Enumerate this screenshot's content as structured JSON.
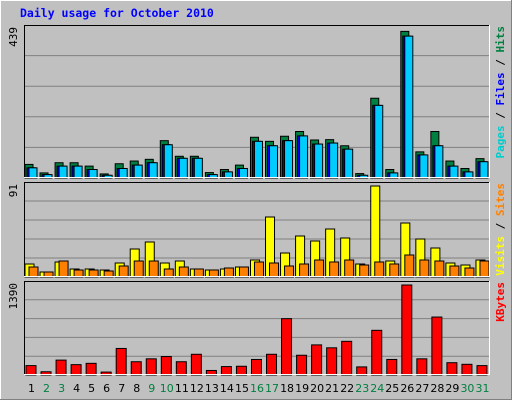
{
  "chart_data": {
    "type": "bar",
    "title": "Daily usage for October 2010",
    "categories": [
      "1",
      "2",
      "3",
      "4",
      "5",
      "6",
      "7",
      "8",
      "9",
      "10",
      "11",
      "12",
      "13",
      "14",
      "15",
      "16",
      "17",
      "18",
      "19",
      "20",
      "21",
      "22",
      "23",
      "24",
      "25",
      "26",
      "27",
      "28",
      "29",
      "30",
      "31"
    ],
    "weekend_days": [
      "2",
      "3",
      "9",
      "10",
      "16",
      "17",
      "23",
      "24",
      "30",
      "31"
    ],
    "grid": true,
    "panels": [
      {
        "id": "pages-files-hits",
        "ymax_label": "439",
        "ylim": [
          0,
          439
        ],
        "axis_label_parts": [
          {
            "text": "Pages",
            "color": "#00cccc"
          },
          {
            "text": " / ",
            "color": "#000000"
          },
          {
            "text": "Files",
            "color": "#0000ff"
          },
          {
            "text": " / ",
            "color": "#000000"
          },
          {
            "text": "Hits",
            "color": "#008040"
          }
        ],
        "series": [
          {
            "name": "Hits",
            "color": "#008040",
            "values": [
              40,
              15,
              45,
              45,
              35,
              12,
              42,
              50,
              55,
              110,
              64,
              64,
              16,
              25,
              38,
              120,
              108,
              123,
              137,
              112,
              113,
              95,
              13,
              235,
              25,
              432,
              77,
              137,
              50,
              28,
              57
            ]
          },
          {
            "name": "Files",
            "color": "#0000ff",
            "values": [
              30,
              10,
              35,
              35,
              25,
              8,
              28,
              38,
              45,
              98,
              58,
              58,
              10,
              18,
              28,
              108,
              95,
              110,
              124,
              100,
              103,
              85,
              8,
              214,
              15,
              418,
              68,
              95,
              35,
              18,
              48
            ]
          },
          {
            "name": "Pages",
            "color": "#00ccff",
            "values": [
              30,
              10,
              35,
              35,
              25,
              8,
              28,
              38,
              45,
              98,
              58,
              58,
              10,
              18,
              28,
              108,
              95,
              110,
              124,
              100,
              103,
              85,
              8,
              214,
              15,
              418,
              68,
              95,
              35,
              18,
              48
            ]
          }
        ]
      },
      {
        "id": "visits-sites",
        "ymax_label": "91",
        "ylim": [
          0,
          91
        ],
        "axis_label_parts": [
          {
            "text": "Visits",
            "color": "#ffff00"
          },
          {
            "text": " / ",
            "color": "#000000"
          },
          {
            "text": "Sites",
            "color": "#ff8000"
          }
        ],
        "series": [
          {
            "name": "Visits",
            "color": "#ffff00",
            "values": [
              13,
              5,
              15,
              8,
              8,
              7,
              14,
              28,
              35,
              14,
              16,
              8,
              7,
              8,
              10,
              17,
              60,
              24,
              41,
              36,
              48,
              39,
              13,
              91,
              16,
              54,
              38,
              29,
              14,
              12,
              17
            ]
          },
          {
            "name": "Sites",
            "color": "#ff8000",
            "values": [
              10,
              5,
              16,
              7,
              7,
              6,
              11,
              16,
              16,
              8,
              10,
              8,
              7,
              9,
              10,
              15,
              14,
              11,
              13,
              17,
              15,
              17,
              12,
              15,
              13,
              22,
              17,
              16,
              11,
              9,
              16
            ]
          }
        ]
      },
      {
        "id": "kbytes",
        "ymax_label": "1390",
        "ylim": [
          0,
          1390
        ],
        "axis_label_parts": [
          {
            "text": "KBytes",
            "color": "#ff0000"
          }
        ],
        "series": [
          {
            "name": "KBytes",
            "color": "#ff0000",
            "values": [
              145,
              50,
              230,
              160,
              180,
              45,
              410,
              205,
              250,
              285,
              205,
              320,
              70,
              130,
              135,
              240,
              320,
              870,
              305,
              465,
              420,
              520,
              125,
              690,
              240,
              1390,
              250,
              895,
              190,
              165,
              145
            ]
          }
        ]
      }
    ]
  }
}
